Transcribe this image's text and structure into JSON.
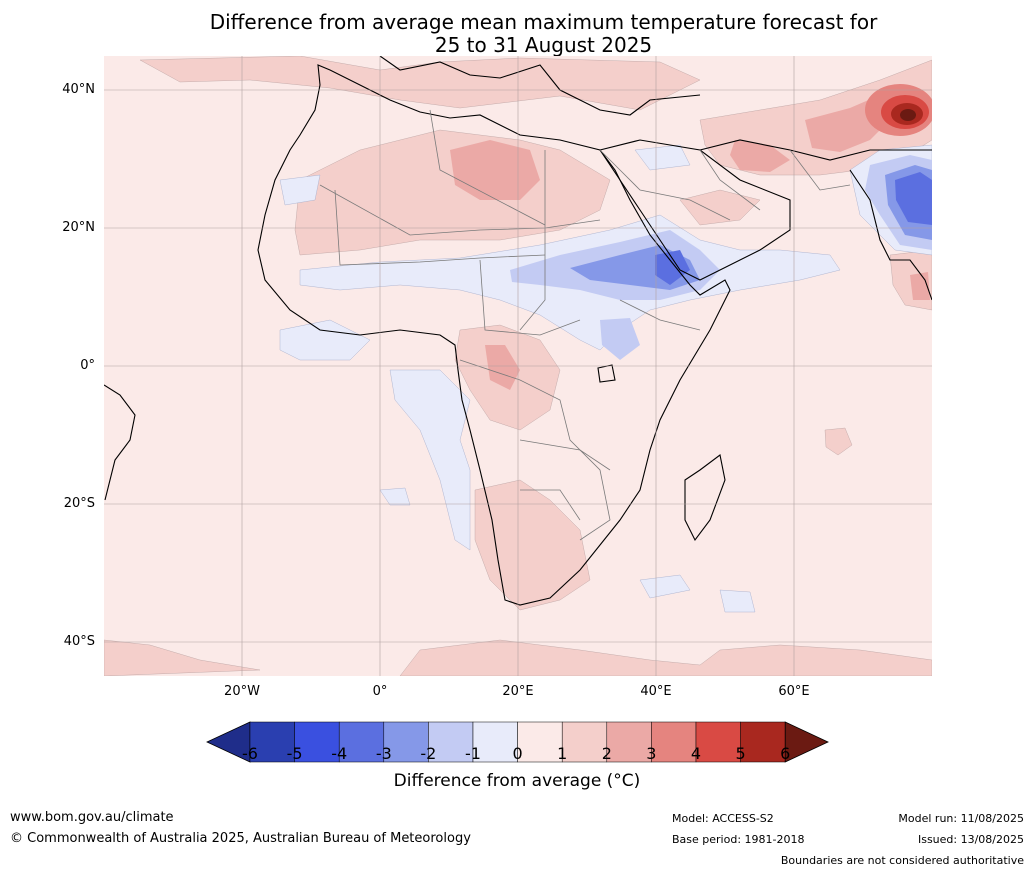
{
  "title_line1": "Difference from average mean maximum temperature forecast for",
  "title_line2": "25 to 31 August 2025",
  "lat_labels": [
    "40°N",
    "20°N",
    "0°",
    "20°S",
    "40°S"
  ],
  "lon_labels": [
    "20°W",
    "0°",
    "20°E",
    "40°E",
    "60°E"
  ],
  "colorbar": {
    "ticks": [
      "-6",
      "-5",
      "-4",
      "-3",
      "-2",
      "-1",
      "0",
      "1",
      "2",
      "3",
      "4",
      "5",
      "6"
    ],
    "label": "Difference from average (°C)",
    "colors": [
      "#1f2d8a",
      "#2a3fb0",
      "#3a50e0",
      "#5b6fe0",
      "#8598e8",
      "#c3cbf3",
      "#e8ebfa",
      "#fbeae8",
      "#f4cfcb",
      "#eba9a6",
      "#e5847f",
      "#d94a44",
      "#a9281f",
      "#6b1a12"
    ]
  },
  "footer": {
    "website": "www.bom.gov.au/climate",
    "copyright": "© Commonwealth of Australia 2025, Australian Bureau of Meteorology",
    "model": "Model: ACCESS-S2",
    "base_period": "Base period: 1981-2018",
    "model_run": "Model run: 11/08/2025",
    "issued": "Issued: 13/08/2025",
    "disclaimer": "Boundaries are not considered authoritative"
  },
  "colors": {
    "background_anomaly": "#fbeae8",
    "cool_anomaly": "#e8ebfa",
    "warm_anomaly": "#f4cfcb"
  }
}
